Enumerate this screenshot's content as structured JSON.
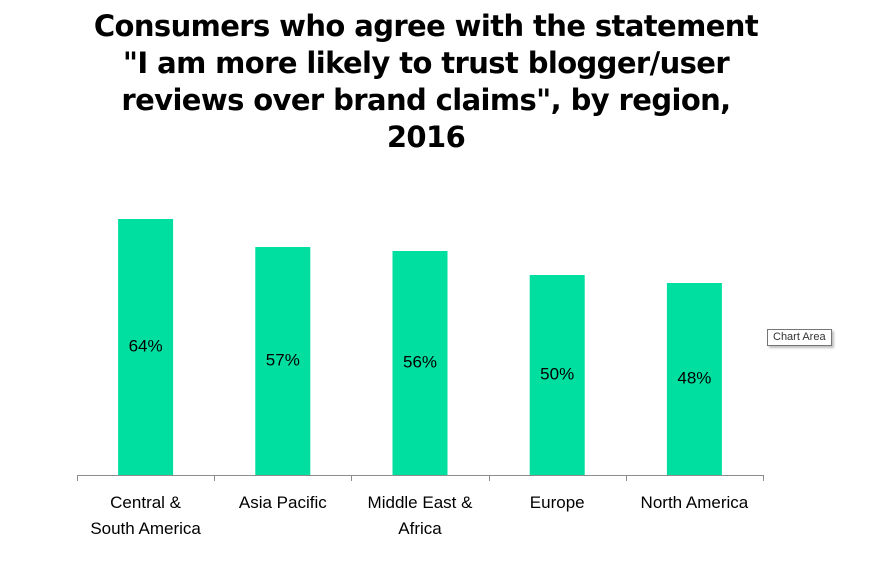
{
  "chart_data": {
    "type": "bar",
    "title": "Consumers who  agree with the statement \"I am more likely to trust blogger/user reviews over brand claims\",  by region, 2016",
    "title_lines": [
      "Consumers who  agree with the statement",
      "\"I am more likely to trust blogger/user",
      "reviews over brand claims\",  by region,",
      "2016"
    ],
    "categories": [
      [
        "Central &",
        "South America"
      ],
      [
        "Asia Pacific"
      ],
      [
        "Middle East &",
        "Africa"
      ],
      [
        "Europe"
      ],
      [
        "North America"
      ]
    ],
    "values": [
      64,
      57,
      56,
      50,
      48
    ],
    "data_labels": [
      "64%",
      "57%",
      "56%",
      "50%",
      "48%"
    ],
    "ylim": [
      0,
      68
    ],
    "value_axis_visible": false,
    "grid": false,
    "legend": "none",
    "bar_color": "#00DFA0",
    "axis_color": "#8C8C8C"
  },
  "tooltip": {
    "label": "Chart Area"
  }
}
